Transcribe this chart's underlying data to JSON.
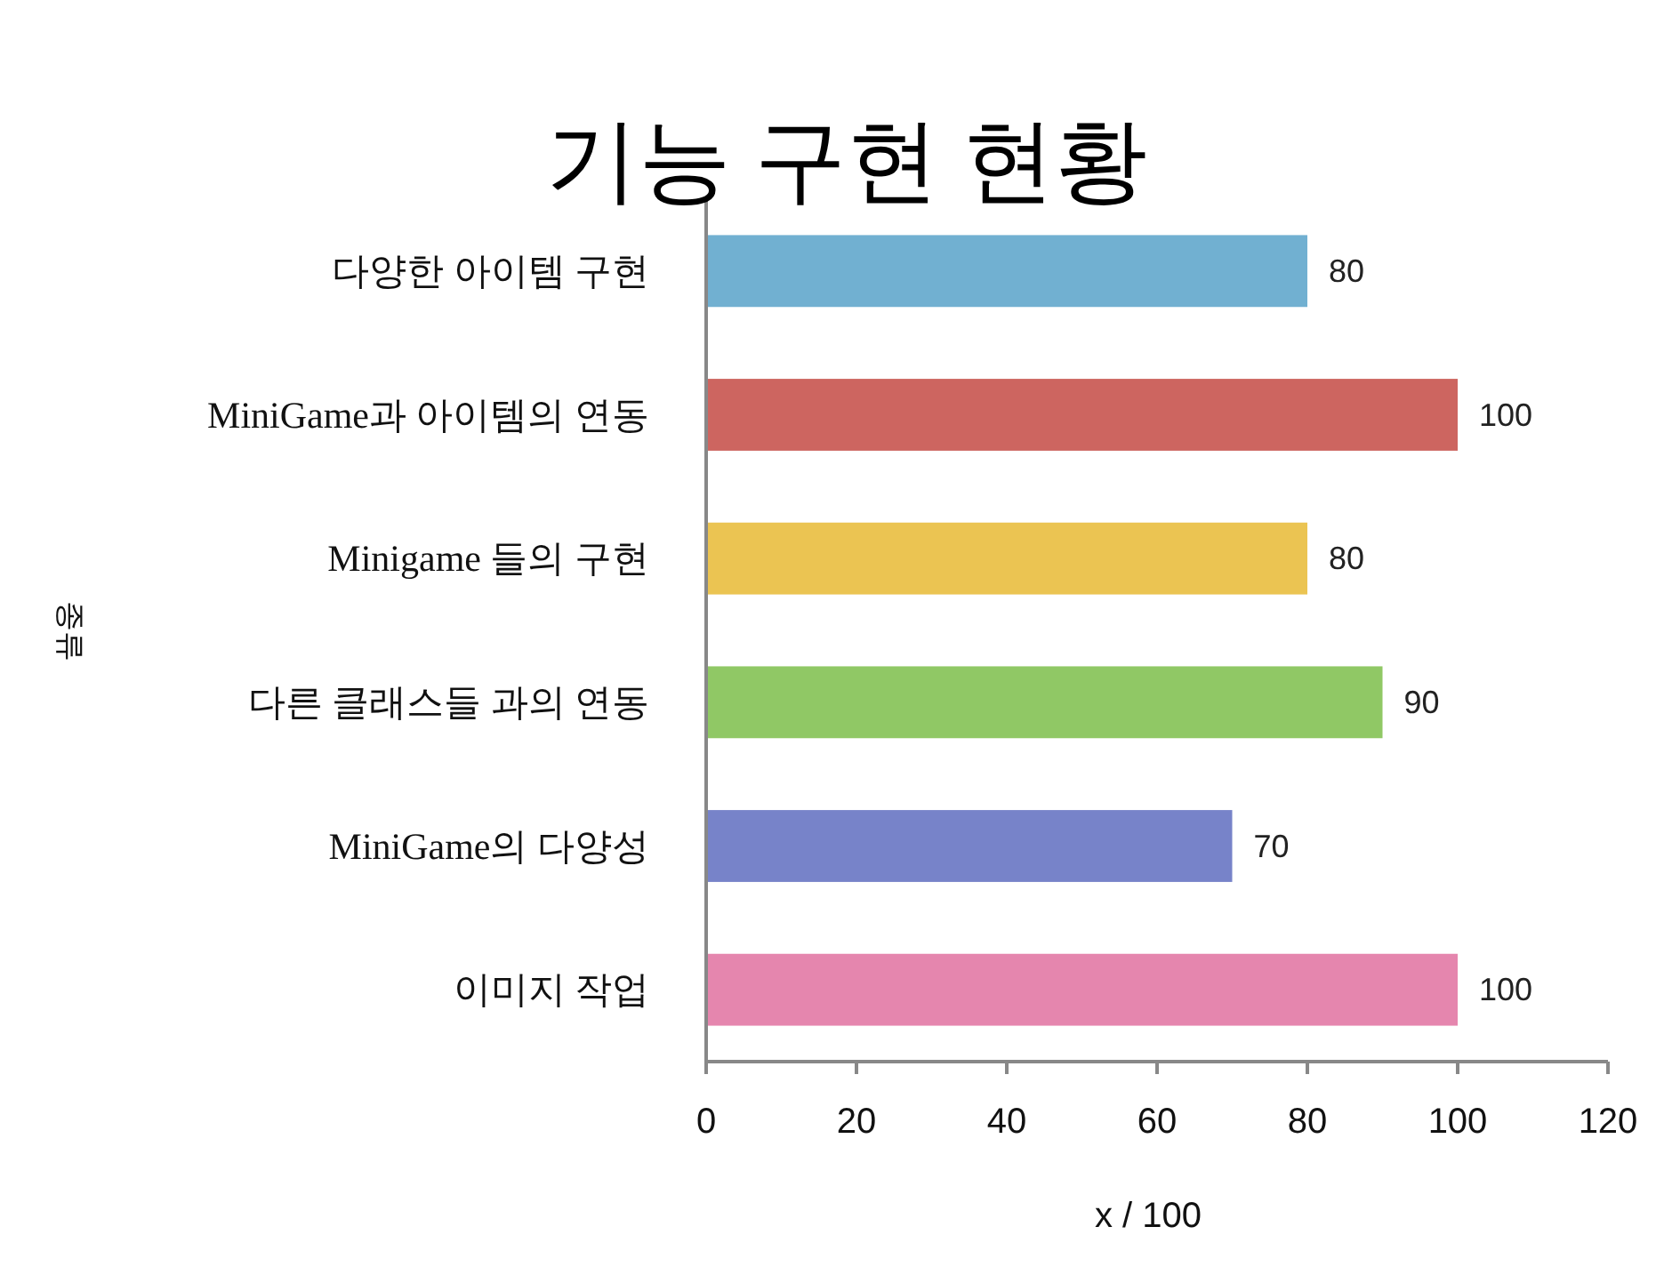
{
  "chart_data": {
    "type": "bar",
    "orientation": "horizontal",
    "title": "기능 구현 현황",
    "xlabel": "x / 100",
    "ylabel": "종류",
    "categories": [
      "다양한 아이템 구현",
      "MiniGame과 아이템의 연동",
      "Minigame 들의 구현",
      "다른 클래스들 과의 연동",
      "MiniGame의 다양성",
      "이미지 작업"
    ],
    "values": [
      80,
      100,
      80,
      90,
      70,
      100
    ],
    "colors": [
      "#71b0d1",
      "#cd6560",
      "#ebc452",
      "#90c865",
      "#7783c9",
      "#e586ae"
    ],
    "xlim": [
      0,
      120
    ],
    "xticks": [
      0,
      20,
      40,
      60,
      80,
      100,
      120
    ],
    "data_labels": true
  }
}
